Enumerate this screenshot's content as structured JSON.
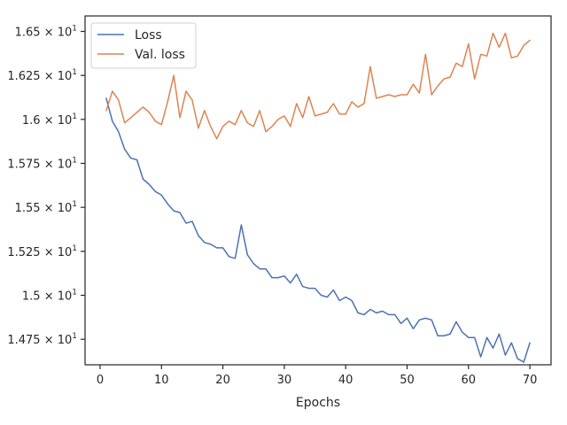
{
  "chart_data": {
    "type": "line",
    "xlabel": "Epochs",
    "ylabel": "",
    "xlim": [
      -2.45,
      73.45
    ],
    "ylim": [
      14.605,
      16.588
    ],
    "x_ticks": [
      0,
      10,
      20,
      30,
      40,
      50,
      60,
      70
    ],
    "y_ticks": [
      14.75,
      15.0,
      15.25,
      15.5,
      15.75,
      16.0,
      16.25,
      16.5
    ],
    "x_tick_labels": [
      "0",
      "10",
      "20",
      "30",
      "40",
      "50",
      "60",
      "70"
    ],
    "y_tick_labels": [
      {
        "mantissa": "1.475",
        "base": "10",
        "exp": "1"
      },
      {
        "mantissa": "1.5",
        "base": "10",
        "exp": "1"
      },
      {
        "mantissa": "1.525",
        "base": "10",
        "exp": "1"
      },
      {
        "mantissa": "1.55",
        "base": "10",
        "exp": "1"
      },
      {
        "mantissa": "1.575",
        "base": "10",
        "exp": "1"
      },
      {
        "mantissa": "1.6",
        "base": "10",
        "exp": "1"
      },
      {
        "mantissa": "1.625",
        "base": "10",
        "exp": "1"
      },
      {
        "mantissa": "1.65",
        "base": "10",
        "exp": "1"
      }
    ],
    "grid": false,
    "legend_position": "top-left",
    "series": [
      {
        "name": "Loss",
        "color": "#4c72b0",
        "x": [
          1,
          2,
          3,
          4,
          5,
          6,
          7,
          8,
          9,
          10,
          11,
          12,
          13,
          14,
          15,
          16,
          17,
          18,
          19,
          20,
          21,
          22,
          23,
          24,
          25,
          26,
          27,
          28,
          29,
          30,
          31,
          32,
          33,
          34,
          35,
          36,
          37,
          38,
          39,
          40,
          41,
          42,
          43,
          44,
          45,
          46,
          47,
          48,
          49,
          50,
          51,
          52,
          53,
          54,
          55,
          56,
          57,
          58,
          59,
          60,
          61,
          62,
          63,
          64,
          65,
          66,
          67,
          68,
          69,
          70
        ],
        "y": [
          16.12,
          15.99,
          15.93,
          15.83,
          15.78,
          15.77,
          15.66,
          15.63,
          15.59,
          15.57,
          15.52,
          15.48,
          15.47,
          15.41,
          15.42,
          15.34,
          15.3,
          15.29,
          15.27,
          15.27,
          15.22,
          15.21,
          15.4,
          15.23,
          15.18,
          15.15,
          15.15,
          15.1,
          15.1,
          15.11,
          15.07,
          15.12,
          15.05,
          15.04,
          15.04,
          15.0,
          14.99,
          15.03,
          14.97,
          14.99,
          14.97,
          14.9,
          14.89,
          14.92,
          14.9,
          14.91,
          14.89,
          14.89,
          14.84,
          14.87,
          14.81,
          14.86,
          14.87,
          14.86,
          14.77,
          14.77,
          14.78,
          14.85,
          14.79,
          14.76,
          14.76,
          14.65,
          14.76,
          14.7,
          14.78,
          14.66,
          14.73,
          14.64,
          14.62,
          14.73
        ]
      },
      {
        "name": "Val. loss",
        "color": "#dd8452",
        "x": [
          1,
          2,
          3,
          4,
          5,
          6,
          7,
          8,
          9,
          10,
          11,
          12,
          13,
          14,
          15,
          16,
          17,
          18,
          19,
          20,
          21,
          22,
          23,
          24,
          25,
          26,
          27,
          28,
          29,
          30,
          31,
          32,
          33,
          34,
          35,
          36,
          37,
          38,
          39,
          40,
          41,
          42,
          43,
          44,
          45,
          46,
          47,
          48,
          49,
          50,
          51,
          52,
          53,
          54,
          55,
          56,
          57,
          58,
          59,
          60,
          61,
          62,
          63,
          64,
          65,
          66,
          67,
          68,
          69,
          70
        ],
        "y": [
          16.05,
          16.16,
          16.11,
          15.98,
          16.01,
          16.04,
          16.07,
          16.04,
          15.99,
          15.97,
          16.1,
          16.25,
          16.01,
          16.16,
          16.11,
          15.95,
          16.05,
          15.96,
          15.89,
          15.96,
          15.99,
          15.97,
          16.05,
          15.98,
          15.96,
          16.05,
          15.93,
          15.96,
          16.0,
          16.02,
          15.96,
          16.09,
          16.01,
          16.13,
          16.02,
          16.03,
          16.04,
          16.09,
          16.03,
          16.03,
          16.1,
          16.07,
          16.09,
          16.3,
          16.12,
          16.13,
          16.14,
          16.13,
          16.14,
          16.14,
          16.2,
          16.15,
          16.37,
          16.14,
          16.19,
          16.23,
          16.24,
          16.32,
          16.3,
          16.43,
          16.23,
          16.37,
          16.36,
          16.49,
          16.41,
          16.49,
          16.35,
          16.36,
          16.42,
          16.45
        ]
      }
    ]
  }
}
